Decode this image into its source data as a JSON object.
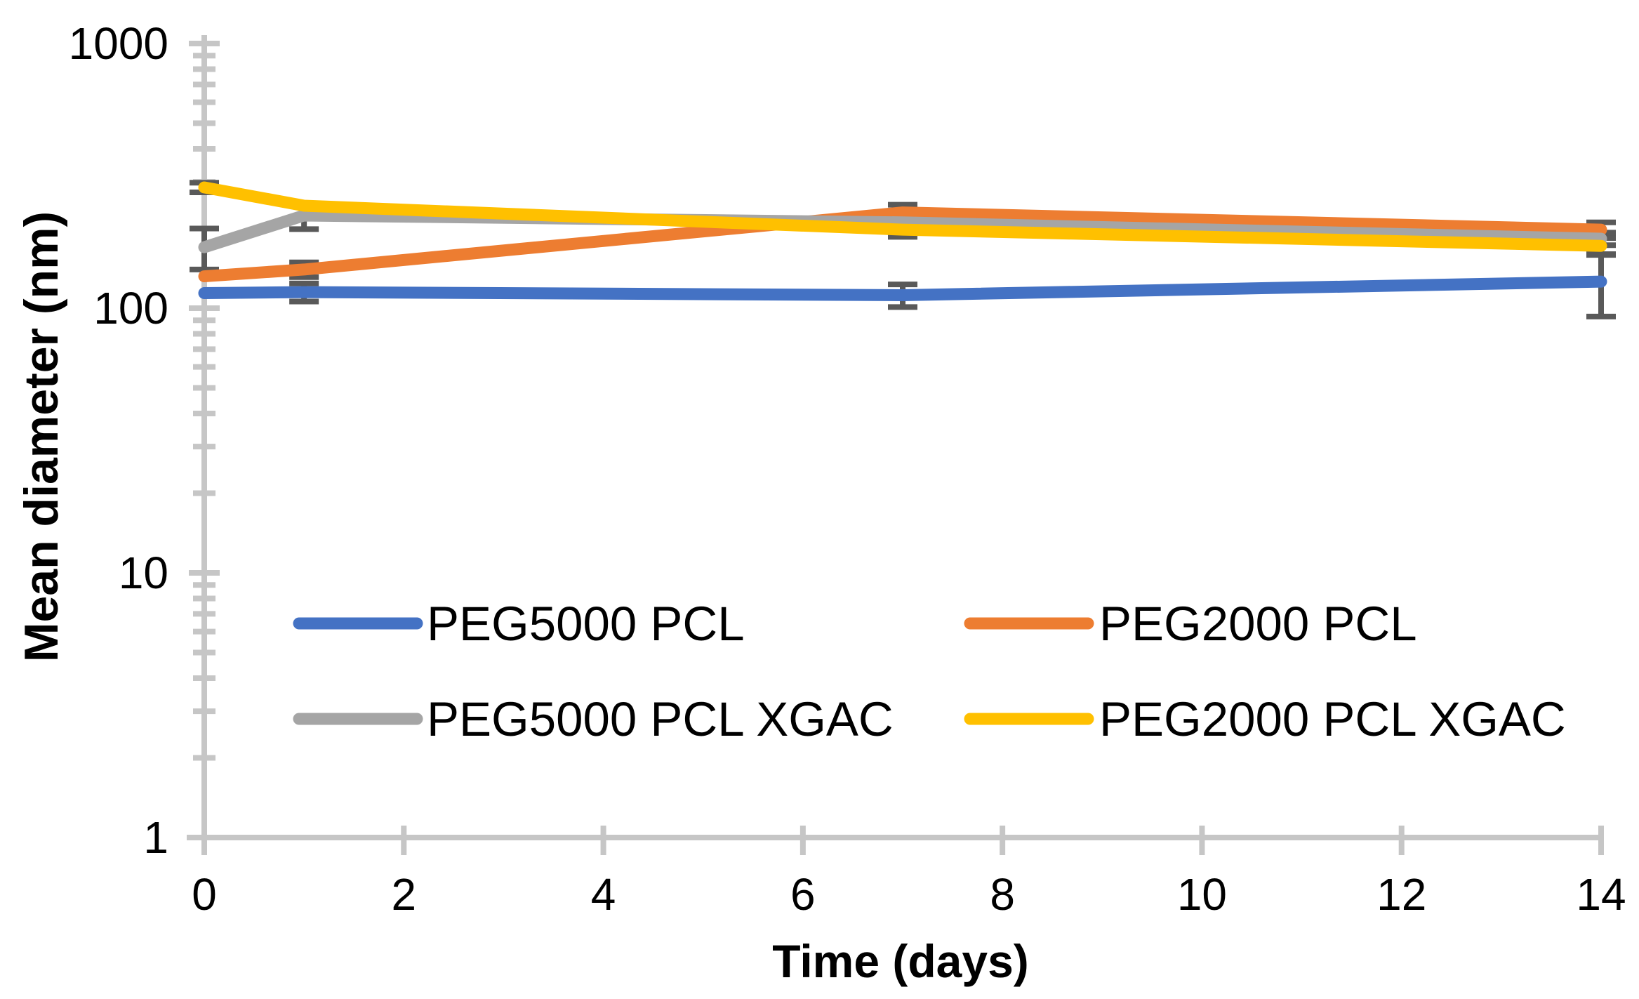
{
  "chart_data": {
    "type": "line",
    "title": "",
    "xlabel": "Time (days)",
    "ylabel": "Mean diameter (nm)",
    "x": [
      0,
      1,
      7,
      14
    ],
    "x_axis": {
      "min": 0,
      "max": 14,
      "tick_interval": 2,
      "tick_values": [
        0,
        2,
        4,
        6,
        8,
        10,
        12,
        14
      ],
      "tick_labels": [
        "0",
        "2",
        "4",
        "6",
        "8",
        "10",
        "12",
        "14"
      ]
    },
    "y_axis": {
      "scale": "log",
      "min": 1,
      "max": 1000,
      "tick_values": [
        1,
        10,
        100,
        1000
      ],
      "tick_labels": [
        "1",
        "10",
        "100",
        "1000"
      ],
      "minor_ticks": "log-decades 2-9"
    },
    "grid": false,
    "legend_position": "inside-bottom-two-columns",
    "series": [
      {
        "name": "PEG5000 PCL",
        "color": "#4472C4",
        "values": [
          114,
          115,
          112,
          126
        ],
        "error_bars": [
          0,
          9,
          11,
          33
        ]
      },
      {
        "name": "PEG2000 PCL",
        "color": "#ED7D31",
        "values": [
          132,
          140,
          230,
          198
        ],
        "error_bars": [
          0,
          9,
          16,
          13
        ]
      },
      {
        "name": "PEG5000 PCL XGAC",
        "color": "#A5A5A5",
        "values": [
          170,
          224,
          211,
          183
        ],
        "error_bars": [
          30,
          25,
          15,
          10
        ]
      },
      {
        "name": "PEG2000 PCL XGAC",
        "color": "#FFC000",
        "values": [
          286,
          244,
          198,
          172
        ],
        "error_bars": [
          12,
          0,
          12,
          12
        ]
      }
    ],
    "colors": {
      "axis": "#C6C6C6",
      "error_bar": "#595959",
      "text": "#000000",
      "background": "#FFFFFF"
    }
  }
}
